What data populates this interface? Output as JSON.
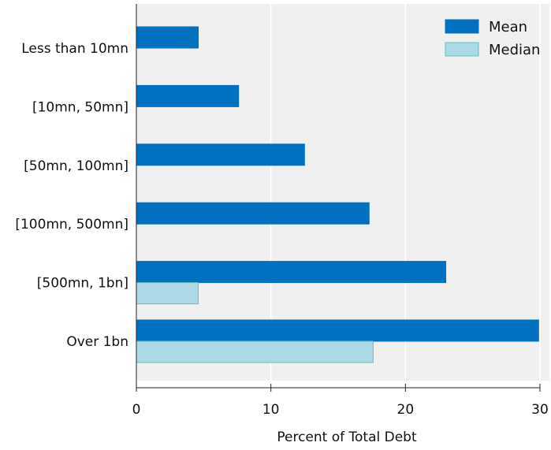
{
  "chart_data": {
    "type": "bar",
    "orientation": "horizontal",
    "categories": [
      "Less than 10mn",
      "[10mn, 50mn]",
      "[50mn, 100mn]",
      "[100mn, 500mn]",
      "[500mn, 1bn]",
      "Over 1bn"
    ],
    "series": [
      {
        "name": "Mean",
        "color": "#0070c0",
        "values": [
          4.6,
          7.6,
          12.5,
          17.3,
          23.0,
          29.9
        ]
      },
      {
        "name": "Median",
        "color": "#add8e6",
        "values": [
          0,
          0,
          0,
          0,
          4.6,
          17.6
        ]
      }
    ],
    "xlabel": "Percent of Total Debt",
    "ylabel": "",
    "xlim": [
      0,
      30
    ],
    "xticks": [
      0,
      10,
      20,
      30
    ],
    "grid": true,
    "legend_position": "top-right",
    "plot_background": "#f0f0f0"
  }
}
